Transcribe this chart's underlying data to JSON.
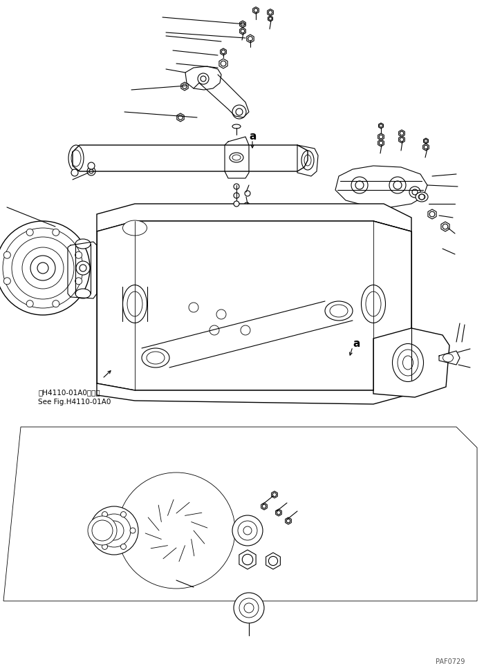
{
  "bg_color": "#ffffff",
  "line_color": "#000000",
  "fig_width": 7.0,
  "fig_height": 9.67,
  "dpi": 100,
  "watermark_text": "PAF0729",
  "ref_text_line1": "第H4110-01A0図参照",
  "ref_text_line2": "See Fig.H4110-01A0",
  "label_a1": "a",
  "label_a2": "a"
}
